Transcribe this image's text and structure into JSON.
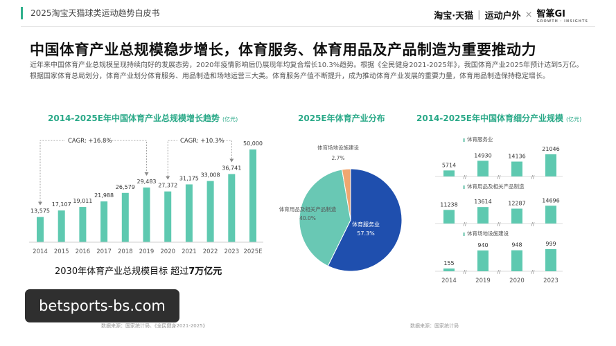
{
  "header": {
    "report_title": "2025淘宝天猫球类运动趋势白皮书",
    "brand_main": "淘宝·天猫",
    "brand_sub": "运动户外",
    "brand_x": "×",
    "brand_partner": "智篆GI",
    "brand_partner_en": "GROWTH · INSIGHTS"
  },
  "main_title": "中国体育产业总规模稳步增长，体育服务、体育用品及产品制造为重要推动力",
  "intro": "近年来中国体育产业总规模呈现持续向好的发展态势，2020年疫情影响后仍展现年均复合增长10.3%趋势。根据《全民健身2021-2025年》，我国体育产业2025年预计达到5万亿。根据国家体育总局划分，体育产业划分体育服务、用品制造和场地运营三大类。体育服务产值不断提升，成为推动体育产业发展的重要力量，体育用品制造保持稳定增长。",
  "left_panel": {
    "title": "2014-2025E年中国体育产业总规模增长趋势",
    "unit": "(亿元)"
  },
  "mid_panel": {
    "title": "2025E年体育产业分布"
  },
  "right_panel": {
    "title": "2014-2025E年中国体育细分产业规模",
    "unit": "(亿元)"
  },
  "target_text": {
    "prefix": "2030年体育产业总规模目标 超过",
    "bold": "7万亿元"
  },
  "sources": {
    "left": "数据来源：国家统计局、《全民健身2021-2025》",
    "right": "数据来源：国家统计局"
  },
  "watermark": "betsports-bs.com",
  "colors": {
    "accent": "#2aa988",
    "bar": "#5ec9b0",
    "pie_blue": "#1f4fae",
    "pie_teal": "#69c8b4",
    "pie_orange": "#f0a770"
  },
  "chart_data": [
    {
      "type": "bar",
      "title": "2014-2025E年中国体育产业总规模增长趋势",
      "ylabel": "(亿元)",
      "categories": [
        "2014",
        "2015",
        "2016",
        "2017",
        "2018",
        "2019",
        "2020",
        "2021",
        "2022",
        "2023",
        "2025E"
      ],
      "values": [
        13575,
        17107,
        19011,
        21988,
        26579,
        29483,
        27372,
        31175,
        33008,
        36741,
        50000
      ],
      "value_labels": [
        "13,575",
        "17,107",
        "19,011",
        "21,988",
        "26,579",
        "29,483",
        "27,372",
        "31,175",
        "33,008",
        "36,741",
        "50,000"
      ],
      "annotations": [
        "CAGR: +16.8%",
        "CAGR: +10.3%"
      ],
      "ylim": [
        0,
        50000
      ]
    },
    {
      "type": "pie",
      "title": "2025E年体育产业分布",
      "slices": [
        {
          "name": "体育服务业",
          "value": 57.3,
          "label": "57.3%"
        },
        {
          "name": "体育用品及相关产品制造",
          "value": 40.0,
          "label": "40.0%"
        },
        {
          "name": "体育场地设施建设",
          "value": 2.7,
          "label": "2.7%"
        }
      ]
    },
    {
      "type": "bar",
      "title": "2014-2025E年中国体育细分产业规模",
      "ylabel": "(亿元)",
      "categories": [
        "2014",
        "2019",
        "2020",
        "2023"
      ],
      "series": [
        {
          "name": "体育服务业",
          "values": [
            5714,
            14930,
            14136,
            21046
          ]
        },
        {
          "name": "体育用品及相关产品制造",
          "values": [
            11238,
            13614,
            12287,
            14696
          ]
        },
        {
          "name": "体育场地设施建设",
          "values": [
            155,
            940,
            948,
            999
          ]
        }
      ]
    }
  ]
}
